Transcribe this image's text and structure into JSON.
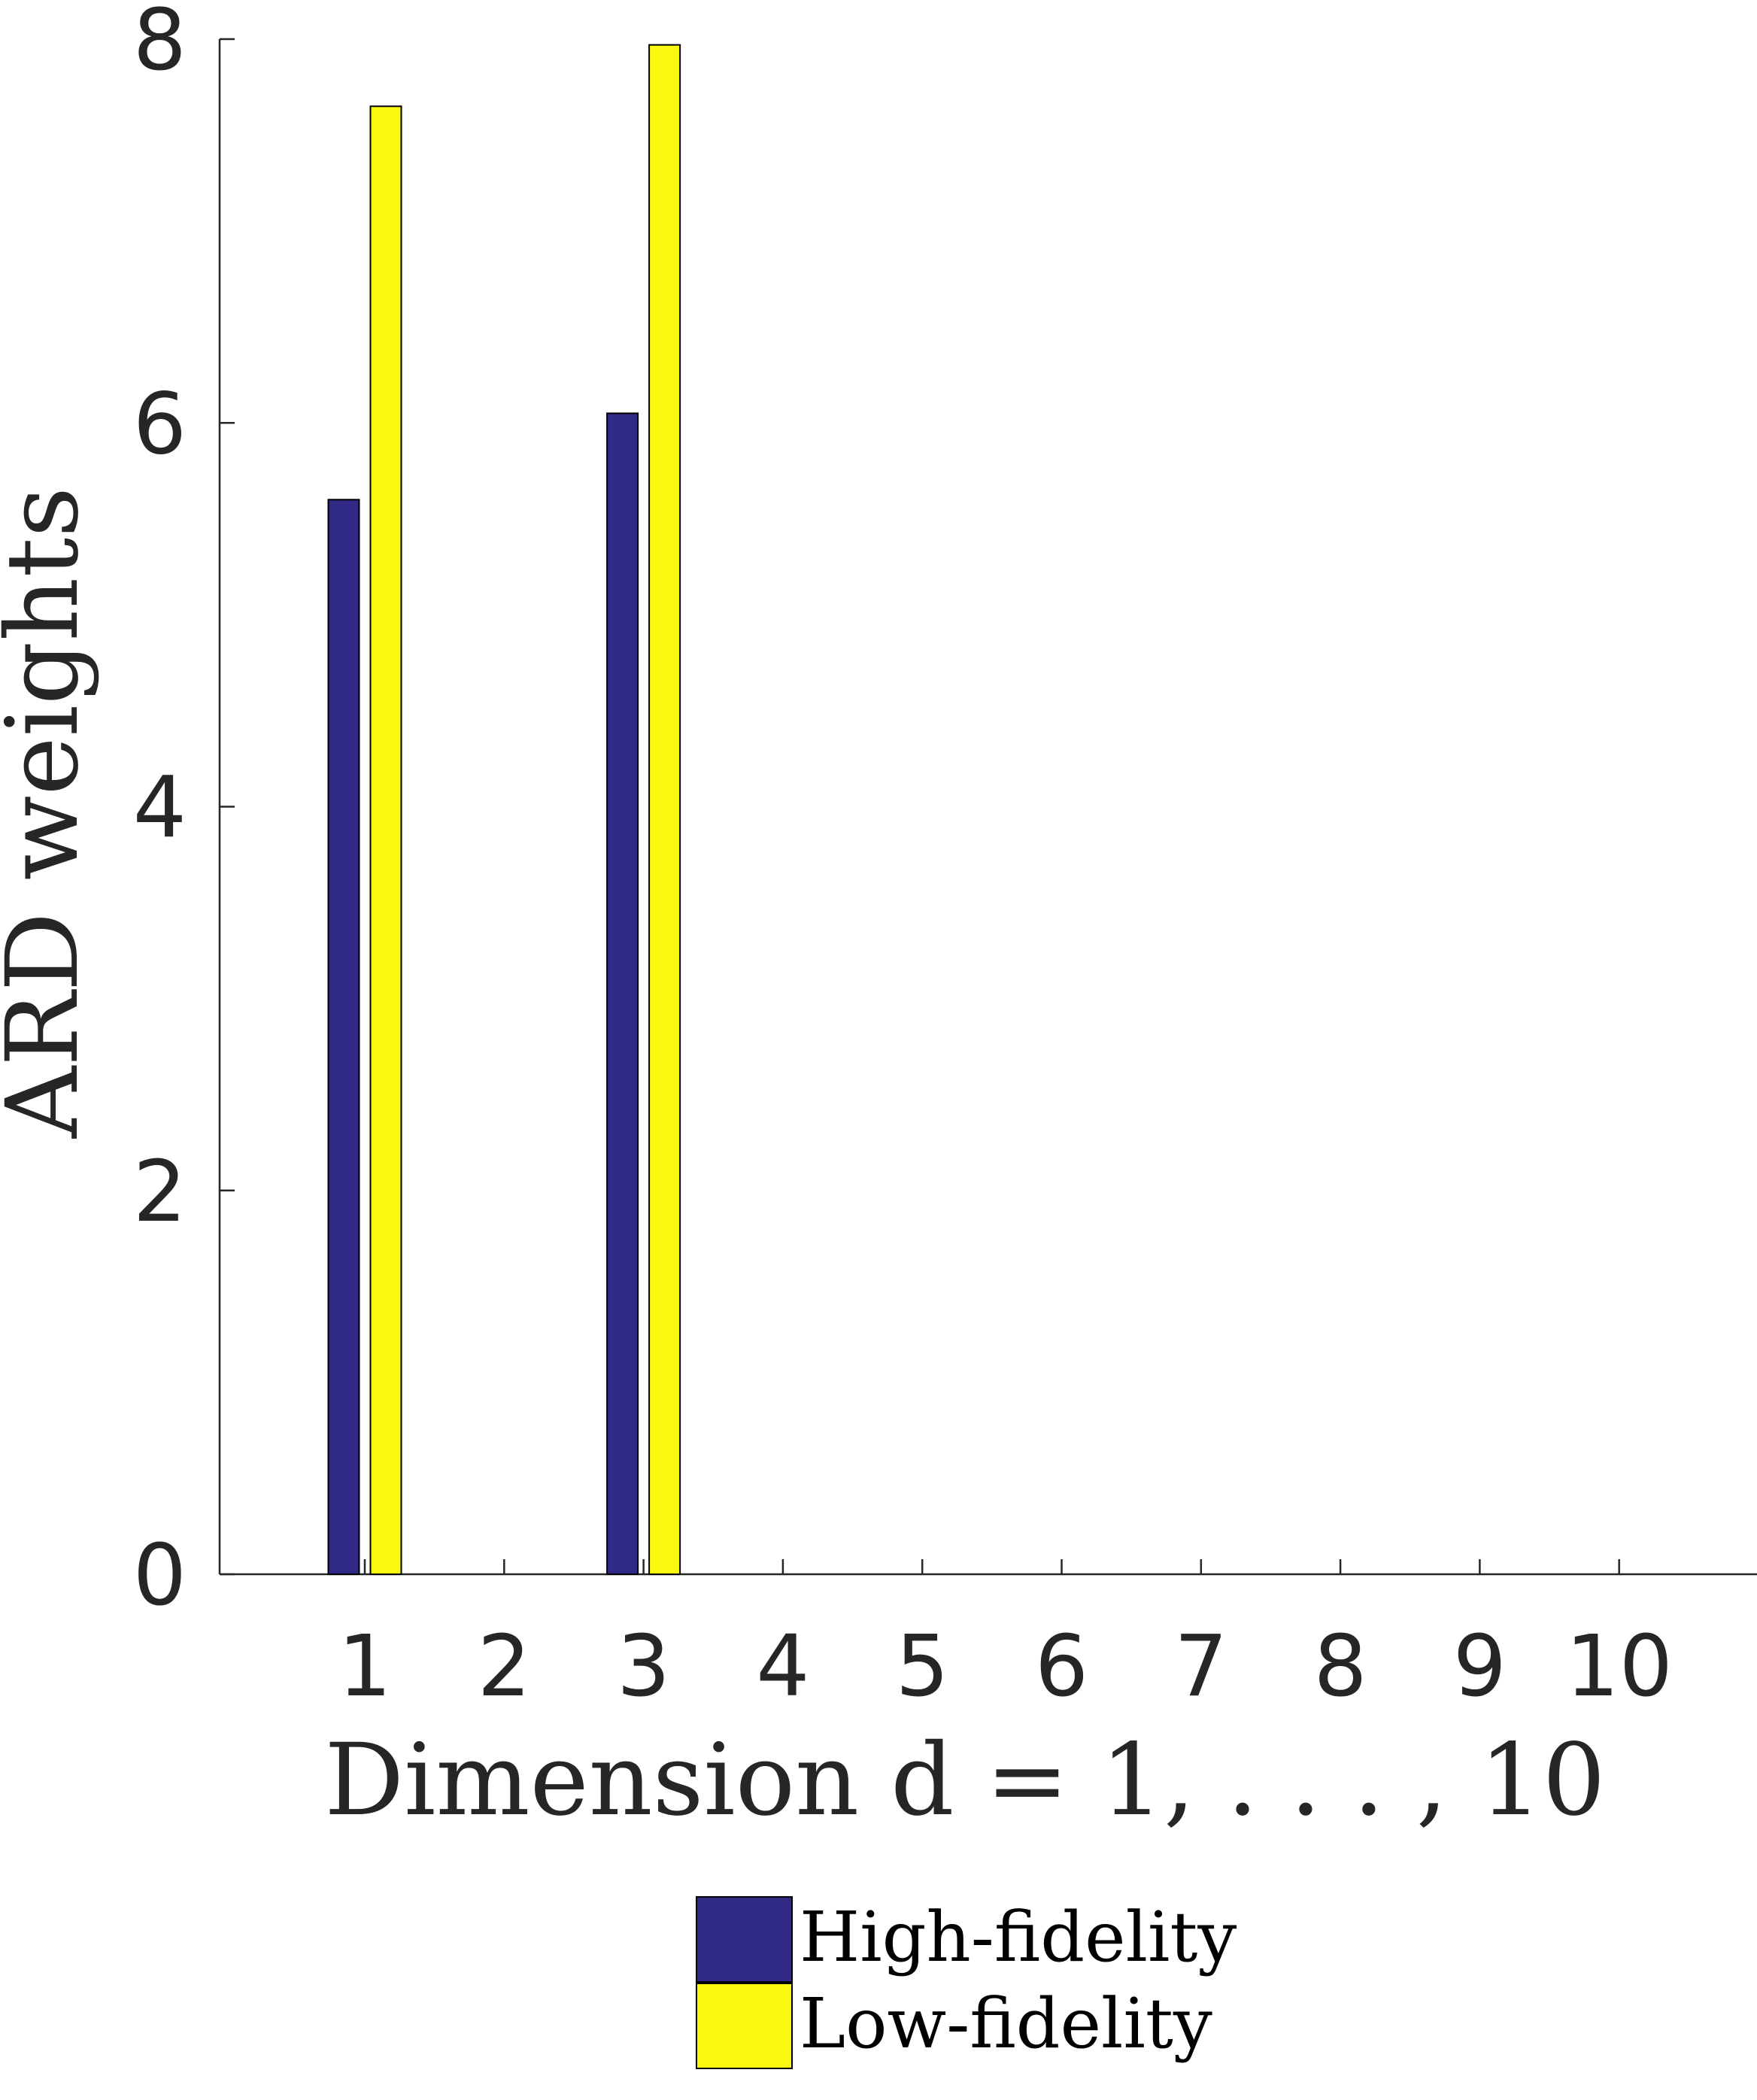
{
  "chart_data": {
    "type": "bar",
    "title": "",
    "xlabel": "Dimension d = 1, . . . , 10",
    "ylabel": "ARD weights",
    "categories": [
      "1",
      "2",
      "3",
      "4",
      "5",
      "6",
      "7",
      "8",
      "9",
      "10"
    ],
    "yticks": [
      "0",
      "2",
      "4",
      "6",
      "8"
    ],
    "ylim": [
      0,
      8
    ],
    "grid": false,
    "legend_position": "bottom",
    "series": [
      {
        "name": "High-fidelity",
        "color": "#302a86",
        "values": [
          5.6,
          0,
          6.05,
          0,
          0,
          0,
          0,
          0,
          0,
          0
        ]
      },
      {
        "name": "Low-fidelity",
        "color": "#f9fa0f",
        "values": [
          7.65,
          0,
          7.97,
          0,
          0,
          0,
          0,
          0,
          0,
          0
        ]
      }
    ]
  }
}
